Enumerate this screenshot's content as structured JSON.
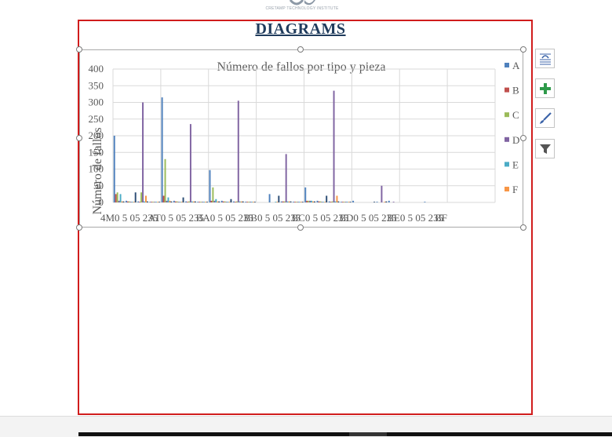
{
  "document": {
    "logo_caption": "CRETAMP TECHNOLOGY INSTITUTE",
    "heading": "DIAGRAMS"
  },
  "side_buttons": {
    "layout": "layout-options-icon",
    "elements": "chart-elements-plus-icon",
    "styles": "chart-styles-brush-icon",
    "filters": "chart-filters-funnel-icon"
  },
  "chart_data": {
    "type": "bar",
    "title": "Número de fallos por tipo y pieza",
    "ylabel": "Número de fallos",
    "xlabel": "",
    "ylim": [
      0,
      400
    ],
    "yticks": [
      0,
      50,
      100,
      150,
      200,
      250,
      300,
      350,
      400
    ],
    "grid": true,
    "legend_position": "right",
    "category_groups": [
      "4M",
      "AT",
      "BA",
      "BB",
      "BC",
      "BD",
      "BE",
      "BF"
    ],
    "subcategories": [
      "0",
      "5",
      "05",
      "235"
    ],
    "x_labels": [
      "4M0 5 05 235",
      "AT0 5 05 235",
      "BA0 5 05 235",
      "BB0 5 05 235",
      "BC0 5 05 235",
      "BD0 5 05 235",
      "BE0 5 05 235",
      "BF"
    ],
    "series": [
      {
        "name": "A",
        "color": "#4f81bd",
        "values": [
          200,
          5,
          3,
          2,
          315,
          5,
          3,
          2,
          97,
          5,
          3,
          2,
          0,
          25,
          3,
          2,
          45,
          5,
          3,
          2,
          5,
          0,
          2,
          5,
          0,
          0,
          2,
          0,
          0,
          0,
          0,
          0
        ]
      },
      {
        "name": "B",
        "color": "#c0504d",
        "values": [
          25,
          3,
          2,
          2,
          20,
          3,
          2,
          2,
          5,
          3,
          2,
          2,
          0,
          0,
          3,
          2,
          5,
          3,
          2,
          2,
          0,
          0,
          0,
          0,
          0,
          0,
          0,
          0,
          0,
          0,
          0,
          0
        ]
      },
      {
        "name": "C",
        "color": "#9bbb59",
        "values": [
          30,
          3,
          30,
          2,
          130,
          3,
          3,
          2,
          45,
          3,
          3,
          2,
          0,
          0,
          3,
          2,
          5,
          3,
          3,
          2,
          0,
          0,
          0,
          0,
          0,
          0,
          0,
          0,
          0,
          0,
          0,
          0
        ]
      },
      {
        "name": "D",
        "color": "#8064a2",
        "values": [
          5,
          2,
          300,
          2,
          5,
          2,
          235,
          2,
          5,
          2,
          305,
          2,
          0,
          0,
          145,
          2,
          5,
          2,
          335,
          2,
          0,
          0,
          50,
          2,
          0,
          0,
          0,
          0,
          0,
          0,
          0,
          0
        ]
      },
      {
        "name": "E",
        "color": "#4bacc6",
        "values": [
          25,
          2,
          3,
          2,
          15,
          2,
          3,
          2,
          10,
          2,
          3,
          2,
          0,
          2,
          3,
          2,
          5,
          2,
          3,
          2,
          0,
          0,
          0,
          0,
          0,
          0,
          0,
          0,
          0,
          0,
          0,
          0
        ]
      },
      {
        "name": "F",
        "color": "#f79646",
        "values": [
          3,
          2,
          20,
          2,
          5,
          2,
          3,
          2,
          3,
          2,
          3,
          2,
          0,
          2,
          3,
          2,
          3,
          2,
          20,
          2,
          0,
          0,
          2,
          0,
          0,
          0,
          0,
          0,
          0,
          0,
          0,
          0
        ]
      },
      {
        "name": "",
        "color": "#2c4d75",
        "values": [
          3,
          30,
          3,
          2,
          3,
          15,
          3,
          2,
          3,
          10,
          3,
          2,
          0,
          20,
          3,
          2,
          3,
          20,
          3,
          2,
          0,
          2,
          3,
          0,
          0,
          0,
          0,
          0,
          0,
          0,
          0,
          0
        ]
      }
    ]
  }
}
